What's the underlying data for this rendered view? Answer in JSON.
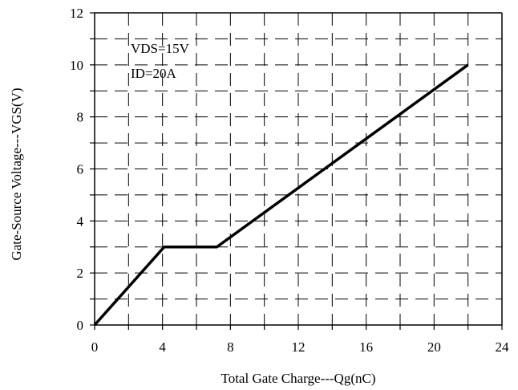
{
  "chart_data": {
    "type": "line",
    "xlabel": "Total Gate Charge---Qg(nC)",
    "ylabel": "Gate-Source Voltage---VGS(V)",
    "xlim": [
      0,
      24
    ],
    "ylim": [
      0,
      12
    ],
    "x_ticks": [
      0,
      4,
      8,
      12,
      16,
      20,
      24
    ],
    "x_tick_labels": [
      "0",
      "4",
      "8",
      "12",
      "16",
      "20",
      "24"
    ],
    "y_ticks": [
      0,
      2,
      4,
      6,
      8,
      10,
      12
    ],
    "y_tick_labels": [
      "0",
      "2",
      "4",
      "6",
      "8",
      "10",
      "12"
    ],
    "grid": true,
    "grid_style": "dashed",
    "annotations": [
      "VDS=15V",
      "ID=20A"
    ],
    "series": [
      {
        "x": [
          0,
          4.1,
          7.2,
          22
        ],
        "y": [
          0,
          3.0,
          3.0,
          10.0
        ],
        "color": "#000000"
      }
    ]
  }
}
